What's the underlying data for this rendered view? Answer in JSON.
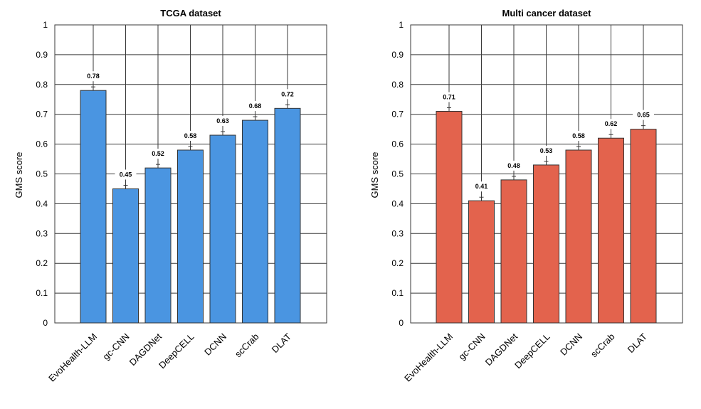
{
  "chart_data": [
    {
      "type": "bar",
      "title": "TCGA dataset",
      "xlabel": "",
      "ylabel": "GMS score",
      "ylim": [
        0,
        1
      ],
      "yticks": [
        "0",
        "0.1",
        "0.2",
        "0.3",
        "0.4",
        "0.5",
        "0.6",
        "0.7",
        "0.8",
        "0.9",
        "1"
      ],
      "categories": [
        "EvoHealth-LLM",
        "gc-CNN",
        "DAGDNet",
        "DeepCELL",
        "DCNN",
        "scCrab",
        "DLAT"
      ],
      "values": [
        0.78,
        0.45,
        0.52,
        0.58,
        0.63,
        0.68,
        0.72
      ],
      "data_labels": [
        "0.78",
        "0.45",
        "0.52",
        "0.58",
        "0.63",
        "0.68",
        "0.72"
      ],
      "bar_color": "#4A95E1",
      "grid": true
    },
    {
      "type": "bar",
      "title": "Multi cancer dataset",
      "xlabel": "",
      "ylabel": "GMS score",
      "ylim": [
        0,
        1
      ],
      "yticks": [
        "0",
        "0.1",
        "0.2",
        "0.3",
        "0.4",
        "0.5",
        "0.6",
        "0.7",
        "0.8",
        "0.9",
        "1"
      ],
      "categories": [
        "EvoHealth-LLM",
        "gc-CNN",
        "DAGDNet",
        "DeepCELL",
        "DCNN",
        "scCrab",
        "DLAT"
      ],
      "values": [
        0.71,
        0.41,
        0.48,
        0.53,
        0.58,
        0.62,
        0.65
      ],
      "data_labels": [
        "0.71",
        "0.41",
        "0.48",
        "0.53",
        "0.58",
        "0.62",
        "0.65"
      ],
      "bar_color": "#E3634D",
      "grid": true
    }
  ]
}
